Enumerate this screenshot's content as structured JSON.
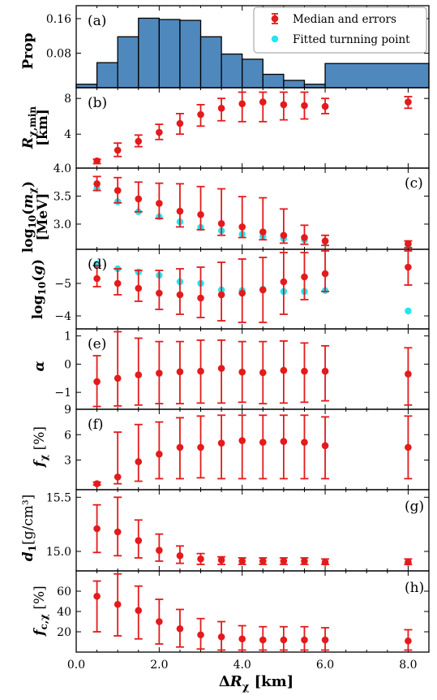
{
  "chart_data": {
    "type": "scatter",
    "xlabel": "ΔRχ [km]",
    "x_ticks": [
      "0.0",
      "2.0",
      "4.0",
      "6.0",
      "8.0"
    ],
    "xlim": [
      0,
      8.5
    ],
    "colors": {
      "median": "#e41a1c",
      "fitted": "#22e5f0",
      "hist": "#4f88bd"
    },
    "legend": {
      "position": "top-right",
      "entries": [
        "Median and errors",
        "Fitted turnning point"
      ]
    },
    "panels": [
      {
        "id": "a",
        "type": "bar",
        "label": "(a)",
        "ylabel": "Prop",
        "ylim": [
          0,
          0.19
        ],
        "yticks": [
          0.08,
          0.16
        ],
        "ytick_labels": [
          "0.08",
          "0.16"
        ],
        "bins": [
          {
            "x0": 0.0,
            "x1": 0.5,
            "v": 0.008
          },
          {
            "x0": 0.5,
            "x1": 1.0,
            "v": 0.058
          },
          {
            "x0": 1.0,
            "x1": 1.5,
            "v": 0.118
          },
          {
            "x0": 1.5,
            "x1": 2.0,
            "v": 0.161
          },
          {
            "x0": 2.0,
            "x1": 2.5,
            "v": 0.158
          },
          {
            "x0": 2.5,
            "x1": 3.0,
            "v": 0.156
          },
          {
            "x0": 3.0,
            "x1": 3.5,
            "v": 0.118
          },
          {
            "x0": 3.5,
            "x1": 4.0,
            "v": 0.078
          },
          {
            "x0": 4.0,
            "x1": 4.5,
            "v": 0.066
          },
          {
            "x0": 4.5,
            "x1": 5.0,
            "v": 0.031
          },
          {
            "x0": 5.0,
            "x1": 5.5,
            "v": 0.017
          },
          {
            "x0": 5.5,
            "x1": 6.0,
            "v": 0.008
          },
          {
            "x0": 6.0,
            "x1": 8.5,
            "v": 0.056
          }
        ]
      },
      {
        "id": "b",
        "type": "errorbar",
        "label": "(b)",
        "ylabel": "Rχ,min [km]",
        "ylim": [
          0.2,
          9.2
        ],
        "yticks": [
          4,
          8
        ],
        "ytick_labels": [
          "4",
          "8"
        ],
        "x": [
          0.5,
          1.0,
          1.5,
          2.0,
          2.5,
          3.0,
          3.5,
          4.0,
          4.5,
          5.0,
          5.5,
          6.0,
          8.0
        ],
        "median": [
          1.0,
          2.2,
          3.2,
          4.2,
          5.2,
          6.2,
          6.9,
          7.4,
          7.6,
          7.3,
          7.2,
          7.1,
          7.6
        ],
        "lo": [
          0.7,
          1.5,
          2.6,
          3.4,
          4.0,
          4.9,
          5.5,
          5.4,
          5.4,
          5.6,
          5.7,
          6.3,
          6.9
        ],
        "hi": [
          1.2,
          3.0,
          3.9,
          5.1,
          6.3,
          7.3,
          8.0,
          8.7,
          8.7,
          8.7,
          8.7,
          8.0,
          8.2
        ]
      },
      {
        "id": "c",
        "type": "errorbar",
        "label": "(c)",
        "ylabel": "log10(mχ) [MeV]",
        "ylim": [
          2.55,
          4.0
        ],
        "yticks": [
          3.0,
          3.5,
          4.0
        ],
        "ytick_labels": [
          "3.0",
          "3.5",
          "4.0"
        ],
        "x": [
          0.5,
          1.0,
          1.5,
          2.0,
          2.5,
          3.0,
          3.5,
          4.0,
          4.5,
          5.0,
          5.5,
          6.0,
          8.0
        ],
        "median": [
          3.72,
          3.6,
          3.45,
          3.37,
          3.23,
          3.17,
          3.01,
          2.95,
          2.86,
          2.8,
          2.76,
          2.7,
          2.65
        ],
        "lo": [
          3.6,
          3.38,
          3.22,
          3.1,
          2.95,
          2.9,
          2.8,
          2.76,
          2.72,
          2.66,
          2.64,
          2.62,
          2.58
        ],
        "hi": [
          3.85,
          3.83,
          3.75,
          3.73,
          3.72,
          3.67,
          3.63,
          3.49,
          3.47,
          3.27,
          2.98,
          2.8,
          2.7
        ],
        "fitted": [
          3.64,
          3.4,
          3.22,
          3.13,
          3.04,
          2.94,
          2.88,
          2.82,
          2.78,
          2.74,
          2.72,
          2.69,
          2.63
        ]
      },
      {
        "id": "d",
        "type": "errorbar",
        "label": "(d)",
        "ylabel": "log10(g)",
        "ylim": [
          -6.05,
          -3.6
        ],
        "inverted": true,
        "yticks": [
          -5,
          -4
        ],
        "ytick_labels": [
          "−5",
          "−4"
        ],
        "x": [
          0.5,
          1.0,
          1.5,
          2.0,
          2.5,
          3.0,
          3.5,
          4.0,
          4.5,
          5.0,
          5.5,
          6.0,
          8.0
        ],
        "median": [
          -5.15,
          -5.0,
          -4.85,
          -4.7,
          -4.65,
          -4.55,
          -4.65,
          -4.7,
          -4.8,
          -5.05,
          -5.2,
          -5.3,
          -5.5
        ],
        "lo": [
          -5.55,
          -5.45,
          -5.4,
          -5.4,
          -5.45,
          -5.5,
          -5.65,
          -5.75,
          -5.8,
          -5.95,
          -5.95,
          -6.0,
          -6.0
        ],
        "hi": [
          -4.9,
          -4.65,
          -4.45,
          -4.2,
          -4.05,
          -3.95,
          -3.85,
          -3.8,
          -3.8,
          -4.05,
          -4.5,
          -4.75,
          -4.95
        ],
        "fitted": [
          -5.6,
          -5.45,
          -5.35,
          -5.25,
          -5.05,
          -5.0,
          -4.8,
          -4.78,
          -4.82,
          -4.75,
          -4.75,
          -4.78,
          -4.15
        ]
      },
      {
        "id": "e",
        "type": "errorbar",
        "label": "(e)",
        "ylabel": "α",
        "ylim": [
          -1.6,
          1.25
        ],
        "yticks": [
          -1,
          0,
          1
        ],
        "ytick_labels": [
          "−1",
          "0",
          "1"
        ],
        "x": [
          0.5,
          1.0,
          1.5,
          2.0,
          2.5,
          3.0,
          3.5,
          4.0,
          4.5,
          5.0,
          5.5,
          6.0,
          8.0
        ],
        "median": [
          -0.62,
          -0.5,
          -0.38,
          -0.32,
          -0.27,
          -0.25,
          -0.15,
          -0.28,
          -0.3,
          -0.22,
          -0.25,
          -0.25,
          -0.35
        ],
        "lo": [
          -1.5,
          -1.48,
          -1.45,
          -1.4,
          -1.4,
          -1.38,
          -1.38,
          -1.35,
          -1.4,
          -1.38,
          -1.35,
          -1.3,
          -1.45
        ],
        "hi": [
          0.3,
          1.15,
          0.92,
          0.8,
          0.8,
          0.85,
          0.85,
          0.8,
          0.8,
          0.82,
          0.75,
          0.65,
          0.58
        ]
      },
      {
        "id": "f",
        "type": "errorbar",
        "label": "(f)",
        "ylabel": "fχ [%]",
        "ylim": [
          -0.5,
          9.0
        ],
        "yticks": [
          3,
          6,
          9
        ],
        "ytick_labels": [
          "3",
          "6",
          "9"
        ],
        "x": [
          0.5,
          1.0,
          1.5,
          2.0,
          2.5,
          3.0,
          3.5,
          4.0,
          4.5,
          5.0,
          5.5,
          6.0,
          8.0
        ],
        "median": [
          0.2,
          1.0,
          2.8,
          3.7,
          4.5,
          4.5,
          5.0,
          5.3,
          5.1,
          5.2,
          5.1,
          4.7,
          4.5
        ],
        "lo": [
          0.05,
          0.2,
          0.5,
          0.8,
          0.8,
          0.9,
          0.8,
          0.8,
          0.8,
          0.8,
          0.8,
          0.8,
          0.8
        ],
        "hi": [
          0.4,
          6.3,
          7.2,
          7.5,
          8.0,
          8.2,
          8.3,
          8.3,
          8.3,
          8.3,
          8.3,
          8.1,
          8.2
        ]
      },
      {
        "id": "g",
        "type": "errorbar",
        "label": "(g)",
        "ylabel": "d1 [g/cm³]",
        "ylim": [
          14.82,
          15.57
        ],
        "yticks": [
          15.0,
          15.5
        ],
        "ytick_labels": [
          "15.0",
          "15.5"
        ],
        "x": [
          0.5,
          1.0,
          1.5,
          2.0,
          2.5,
          3.0,
          3.5,
          4.0,
          4.5,
          5.0,
          5.5,
          6.0,
          8.0
        ],
        "median": [
          15.21,
          15.18,
          15.1,
          15.01,
          14.96,
          14.93,
          14.92,
          14.91,
          14.91,
          14.91,
          14.91,
          14.9,
          14.9
        ],
        "lo": [
          14.99,
          14.96,
          14.94,
          14.91,
          14.89,
          14.88,
          14.88,
          14.88,
          14.88,
          14.88,
          14.88,
          14.88,
          14.88
        ],
        "hi": [
          15.43,
          15.5,
          15.29,
          15.16,
          15.05,
          14.98,
          14.95,
          14.94,
          14.94,
          14.94,
          14.94,
          14.93,
          14.93
        ]
      },
      {
        "id": "h",
        "type": "errorbar",
        "label": "(h)",
        "ylabel": "fc,χ [%]",
        "ylim": [
          0,
          80
        ],
        "yticks": [
          20,
          40,
          60
        ],
        "ytick_labels": [
          "20",
          "40",
          "60"
        ],
        "x": [
          0.5,
          1.0,
          1.5,
          2.0,
          2.5,
          3.0,
          3.5,
          4.0,
          4.5,
          5.0,
          5.5,
          6.0,
          8.0
        ],
        "median": [
          55,
          47,
          41,
          30,
          23,
          17,
          15,
          13,
          12,
          12,
          12,
          12,
          11
        ],
        "lo": [
          20,
          16,
          13,
          8,
          5,
          3,
          2,
          2,
          2,
          2,
          2,
          2,
          2
        ],
        "hi": [
          70,
          77,
          65,
          52,
          42,
          33,
          30,
          26,
          25,
          25,
          25,
          24,
          22
        ]
      }
    ]
  }
}
